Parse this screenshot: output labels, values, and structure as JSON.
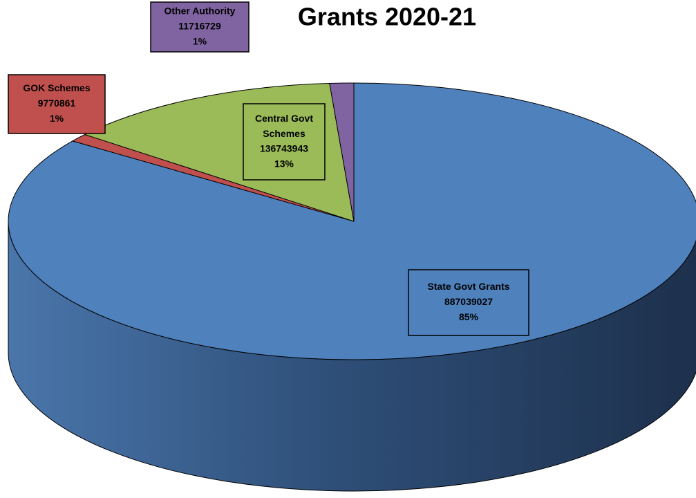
{
  "chart_data": {
    "type": "pie",
    "title": "Grants 2020-21",
    "categories": [
      "State Govt Grants",
      "GOK Schemes",
      "Central Govt Schemes",
      "Other Authority"
    ],
    "values": [
      887039027,
      9770861,
      136743943,
      11716729
    ],
    "percent_labels": [
      "85%",
      "1%",
      "13%",
      "1%"
    ],
    "colors": [
      "#4f81bd",
      "#c0504d",
      "#9bbb59",
      "#8064a2"
    ],
    "three_d": true
  }
}
